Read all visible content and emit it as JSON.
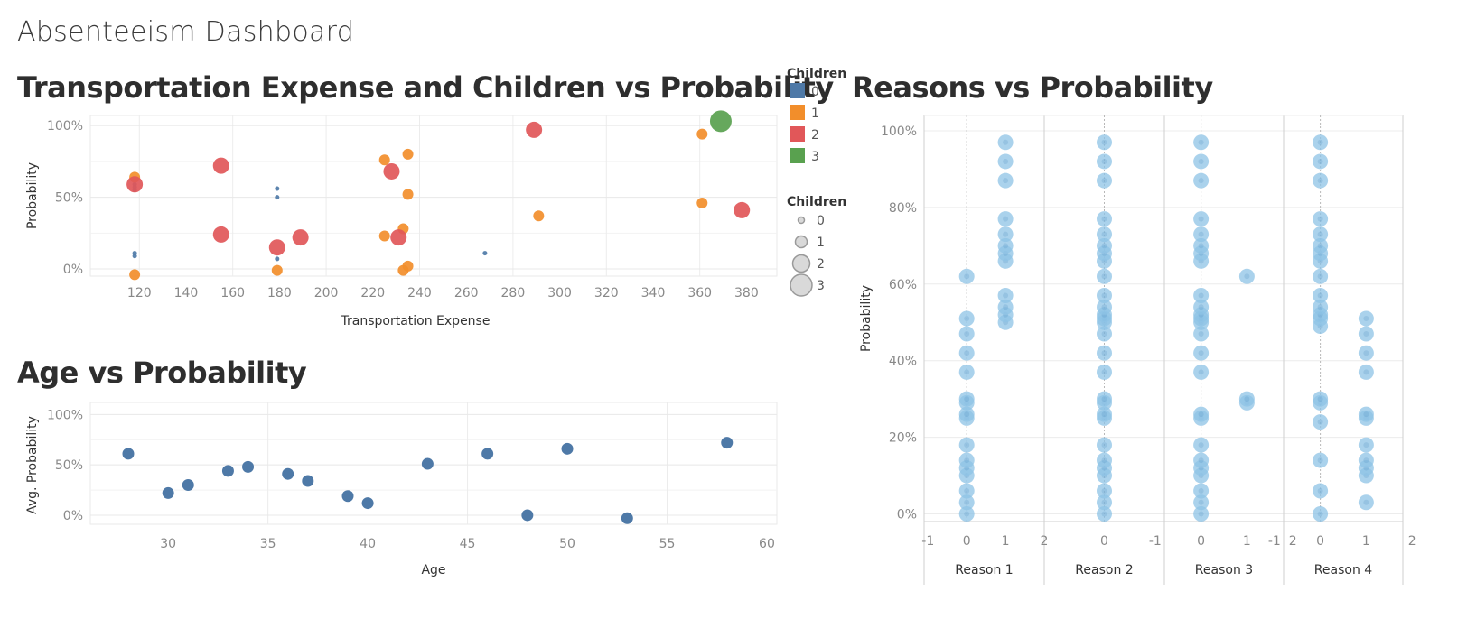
{
  "dashboard": {
    "title": "Absenteeism Dashboard"
  },
  "colors": {
    "c0": "#4e79a7",
    "c1": "#f28e2b",
    "c2": "#e15759",
    "c3": "#59a14f",
    "reason": "#8ec3e6"
  },
  "chart_data": [
    {
      "id": "transport",
      "type": "scatter",
      "title": "Transportation Expense and Children vs Probability",
      "xlabel": "Transportation Expense",
      "ylabel": "Probability",
      "xlim": [
        99,
        393
      ],
      "ylim": [
        -0.05,
        1.07
      ],
      "xticks": [
        "120",
        "140",
        "160",
        "180",
        "200",
        "220",
        "240",
        "260",
        "280",
        "300",
        "320",
        "340",
        "360",
        "380"
      ],
      "yticks": [
        "0%",
        "50%",
        "100%"
      ],
      "legend_color": {
        "title": "Children",
        "items": [
          "0",
          "1",
          "2",
          "3"
        ]
      },
      "legend_size": {
        "title": "Children",
        "items": [
          "0",
          "1",
          "2",
          "3"
        ]
      },
      "points": [
        {
          "x": 118,
          "y": 0.59,
          "c": 0
        },
        {
          "x": 118,
          "y": 0.57,
          "c": 0
        },
        {
          "x": 118,
          "y": 0.55,
          "c": 0
        },
        {
          "x": 118,
          "y": 0.11,
          "c": 0
        },
        {
          "x": 118,
          "y": 0.09,
          "c": 0
        },
        {
          "x": 179,
          "y": 0.56,
          "c": 0
        },
        {
          "x": 179,
          "y": 0.5,
          "c": 0
        },
        {
          "x": 179,
          "y": 0.07,
          "c": 0
        },
        {
          "x": 268,
          "y": 0.11,
          "c": 0
        },
        {
          "x": 118,
          "y": 0.64,
          "c": 1
        },
        {
          "x": 118,
          "y": -0.04,
          "c": 1
        },
        {
          "x": 179,
          "y": -0.01,
          "c": 1
        },
        {
          "x": 225,
          "y": 0.76,
          "c": 1
        },
        {
          "x": 235,
          "y": 0.8,
          "c": 1
        },
        {
          "x": 235,
          "y": 0.52,
          "c": 1
        },
        {
          "x": 233,
          "y": 0.28,
          "c": 1
        },
        {
          "x": 225,
          "y": 0.23,
          "c": 1
        },
        {
          "x": 235,
          "y": 0.02,
          "c": 1
        },
        {
          "x": 233,
          "y": -0.01,
          "c": 1
        },
        {
          "x": 291,
          "y": 0.37,
          "c": 1
        },
        {
          "x": 361,
          "y": 0.94,
          "c": 1
        },
        {
          "x": 361,
          "y": 0.46,
          "c": 1
        },
        {
          "x": 118,
          "y": 0.59,
          "c": 2
        },
        {
          "x": 155,
          "y": 0.72,
          "c": 2
        },
        {
          "x": 155,
          "y": 0.24,
          "c": 2
        },
        {
          "x": 179,
          "y": 0.15,
          "c": 2
        },
        {
          "x": 189,
          "y": 0.22,
          "c": 2
        },
        {
          "x": 228,
          "y": 0.68,
          "c": 2
        },
        {
          "x": 231,
          "y": 0.22,
          "c": 2
        },
        {
          "x": 289,
          "y": 0.97,
          "c": 2
        },
        {
          "x": 378,
          "y": 0.41,
          "c": 2
        },
        {
          "x": 369,
          "y": 1.03,
          "c": 3
        }
      ]
    },
    {
      "id": "age",
      "type": "scatter",
      "title": "Age vs Probability",
      "xlabel": "Age",
      "ylabel": "Avg. Probability",
      "xlim": [
        26.1,
        60.5
      ],
      "ylim": [
        -0.09,
        1.12
      ],
      "xticks": [
        "30",
        "35",
        "40",
        "45",
        "50",
        "55",
        "60"
      ],
      "yticks": [
        "0%",
        "50%",
        "100%"
      ],
      "points": [
        {
          "x": 28,
          "y": 0.61
        },
        {
          "x": 30,
          "y": 0.22
        },
        {
          "x": 31,
          "y": 0.3
        },
        {
          "x": 33,
          "y": 0.44
        },
        {
          "x": 34,
          "y": 0.48
        },
        {
          "x": 36,
          "y": 0.41
        },
        {
          "x": 37,
          "y": 0.34
        },
        {
          "x": 39,
          "y": 0.19
        },
        {
          "x": 40,
          "y": 0.12
        },
        {
          "x": 43,
          "y": 0.51
        },
        {
          "x": 46,
          "y": 0.61
        },
        {
          "x": 48,
          "y": 0.0
        },
        {
          "x": 50,
          "y": 0.66
        },
        {
          "x": 53,
          "y": -0.03
        },
        {
          "x": 58,
          "y": 0.72
        }
      ]
    },
    {
      "id": "reasons",
      "type": "scatter",
      "title": "Reasons vs Probability",
      "ylabel": "Probability",
      "ylim": [
        -0.02,
        1.04
      ],
      "yticks": [
        "0%",
        "20%",
        "40%",
        "60%",
        "80%",
        "100%"
      ],
      "panels": [
        {
          "name": "Reason 1",
          "xlim": [
            -1.1,
            2.0
          ],
          "xticks": [
            "-1",
            "0",
            "1",
            "2"
          ],
          "points": [
            {
              "x": 0,
              "ys": [
                0.0,
                0.03,
                0.06,
                0.1,
                0.12,
                0.14,
                0.18,
                0.25,
                0.26,
                0.29,
                0.3,
                0.37,
                0.42,
                0.47,
                0.51,
                0.62
              ]
            },
            {
              "x": 1,
              "ys": [
                0.5,
                0.52,
                0.54,
                0.57,
                0.66,
                0.68,
                0.7,
                0.73,
                0.77,
                0.87,
                0.92,
                0.97
              ]
            }
          ]
        },
        {
          "name": "Reason 2",
          "xlim": [
            -1.0,
            1.0
          ],
          "xticks": [
            "0"
          ],
          "points": [
            {
              "x": 0,
              "ys": [
                0.0,
                0.03,
                0.06,
                0.1,
                0.12,
                0.14,
                0.18,
                0.25,
                0.26,
                0.29,
                0.3,
                0.37,
                0.42,
                0.47,
                0.5,
                0.51,
                0.52,
                0.54,
                0.57,
                0.62,
                0.66,
                0.68,
                0.7,
                0.73,
                0.77,
                0.87,
                0.92,
                0.97
              ]
            }
          ]
        },
        {
          "name": "Reason 3",
          "xlim": [
            -0.8,
            1.8
          ],
          "xticks": [
            "-1",
            "0",
            "1",
            "2"
          ],
          "points": [
            {
              "x": 0,
              "ys": [
                0.0,
                0.03,
                0.06,
                0.1,
                0.12,
                0.14,
                0.18,
                0.25,
                0.26,
                0.37,
                0.42,
                0.47,
                0.5,
                0.51,
                0.52,
                0.54,
                0.57,
                0.66,
                0.68,
                0.7,
                0.73,
                0.77,
                0.87,
                0.92,
                0.97
              ]
            },
            {
              "x": 1,
              "ys": [
                0.29,
                0.3,
                0.62
              ]
            }
          ]
        },
        {
          "name": "Reason 4",
          "xlim": [
            -0.8,
            1.8
          ],
          "xticks": [
            "-1",
            "0",
            "1",
            "2"
          ],
          "points": [
            {
              "x": 0,
              "ys": [
                0.0,
                0.06,
                0.14,
                0.24,
                0.29,
                0.3,
                0.49,
                0.51,
                0.52,
                0.54,
                0.57,
                0.62,
                0.66,
                0.68,
                0.7,
                0.73,
                0.77,
                0.87,
                0.92,
                0.97
              ]
            },
            {
              "x": 1,
              "ys": [
                0.03,
                0.1,
                0.12,
                0.14,
                0.18,
                0.25,
                0.26,
                0.37,
                0.42,
                0.47,
                0.51
              ]
            }
          ]
        }
      ]
    }
  ]
}
